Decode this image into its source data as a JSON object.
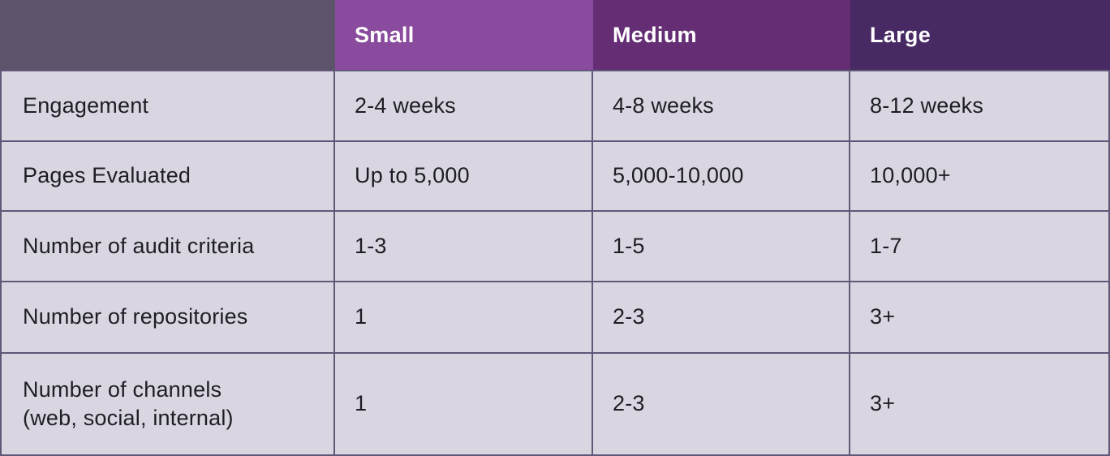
{
  "chart_data": {
    "type": "table",
    "title": "",
    "columns": [
      {
        "label": "",
        "header_bg": "#5d536b"
      },
      {
        "label": "Small",
        "header_bg": "#8a4b9e"
      },
      {
        "label": "Medium",
        "header_bg": "#652d74"
      },
      {
        "label": "Large",
        "header_bg": "#472a63"
      }
    ],
    "rows": [
      {
        "label": "Engagement",
        "values": [
          "2-4 weeks",
          "4-8 weeks",
          "8-12 weeks"
        ]
      },
      {
        "label": "Pages Evaluated",
        "values": [
          "Up to 5,000",
          "5,000-10,000",
          "10,000+"
        ]
      },
      {
        "label": "Number of audit criteria",
        "values": [
          "1-3",
          "1-5",
          "1-7"
        ]
      },
      {
        "label": "Number of repositories",
        "values": [
          "1",
          "2-3",
          "3+"
        ]
      },
      {
        "label": "Number of channels",
        "label_line2": "(web, social, internal)",
        "values": [
          "1",
          "2-3",
          "3+"
        ]
      }
    ],
    "colors": {
      "corner_header_bg": "#5d536b",
      "small_header_bg": "#8a4b9e",
      "medium_header_bg": "#652d74",
      "large_header_bg": "#472a63",
      "body_cell_bg": "#d9d6e1",
      "grid_border": "#5f5878",
      "header_text": "#ffffff",
      "body_text": "#1e1c24"
    }
  }
}
